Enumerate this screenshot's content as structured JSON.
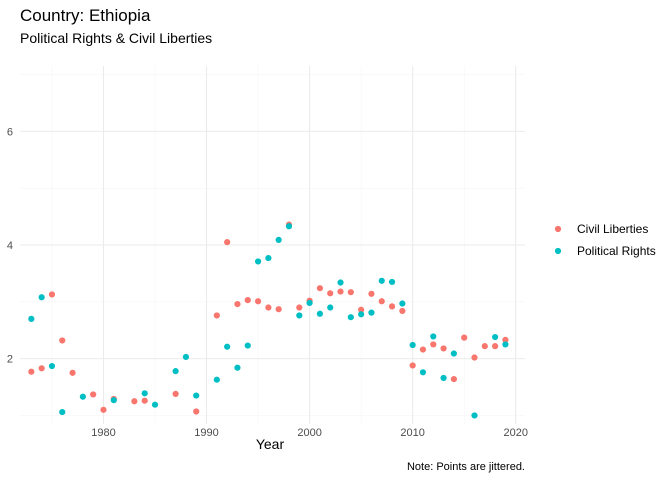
{
  "chart_data": {
    "type": "scatter",
    "title": "Country: Ethiopia",
    "subtitle": "Political Rights & Civil Liberties",
    "xlabel": "Year",
    "ylabel": "",
    "caption": "Note: Points are jittered.",
    "xlim": [
      1971.9,
      2020.9
    ],
    "ylim": [
      0.85,
      7.15
    ],
    "x_ticks": [
      1980,
      1990,
      2000,
      2010,
      2020
    ],
    "y_ticks": [
      2,
      4,
      6
    ],
    "grid": true,
    "legend_position": "right",
    "series": [
      {
        "name": "Civil Liberties",
        "color": "#F8766D",
        "points": [
          [
            1973,
            1.77
          ],
          [
            1974,
            1.83
          ],
          [
            1975,
            3.13
          ],
          [
            1976,
            2.32
          ],
          [
            1977,
            1.75
          ],
          [
            1979,
            1.37
          ],
          [
            1980,
            1.1
          ],
          [
            1981,
            1.29
          ],
          [
            1983,
            1.25
          ],
          [
            1984,
            1.26
          ],
          [
            1987,
            1.38
          ],
          [
            1989,
            1.07
          ],
          [
            1991,
            2.76
          ],
          [
            1992,
            4.05
          ],
          [
            1993,
            2.96
          ],
          [
            1994,
            3.03
          ],
          [
            1995,
            3.01
          ],
          [
            1996,
            2.9
          ],
          [
            1997,
            2.87
          ],
          [
            1998,
            4.36
          ],
          [
            1999,
            2.9
          ],
          [
            2000,
            3.02
          ],
          [
            2001,
            3.24
          ],
          [
            2002,
            3.15
          ],
          [
            2003,
            3.18
          ],
          [
            2004,
            3.17
          ],
          [
            2005,
            2.86
          ],
          [
            2006,
            3.14
          ],
          [
            2007,
            3.01
          ],
          [
            2008,
            2.92
          ],
          [
            2009,
            2.84
          ],
          [
            2010,
            1.88
          ],
          [
            2011,
            2.16
          ],
          [
            2012,
            2.25
          ],
          [
            2013,
            2.18
          ],
          [
            2014,
            1.64
          ],
          [
            2015,
            2.37
          ],
          [
            2016,
            2.02
          ],
          [
            2017,
            2.22
          ],
          [
            2018,
            2.22
          ],
          [
            2019,
            2.33
          ]
        ]
      },
      {
        "name": "Political Rights",
        "color": "#00BFC4",
        "points": [
          [
            1973,
            2.7
          ],
          [
            1974,
            3.08
          ],
          [
            1975,
            1.87
          ],
          [
            1976,
            1.06
          ],
          [
            1978,
            1.33
          ],
          [
            1981,
            1.27
          ],
          [
            1984,
            1.39
          ],
          [
            1985,
            1.19
          ],
          [
            1987,
            1.78
          ],
          [
            1988,
            2.03
          ],
          [
            1989,
            1.35
          ],
          [
            1991,
            1.63
          ],
          [
            1992,
            2.21
          ],
          [
            1993,
            1.84
          ],
          [
            1994,
            2.23
          ],
          [
            1995,
            3.71
          ],
          [
            1996,
            3.77
          ],
          [
            1997,
            4.09
          ],
          [
            1998,
            4.33
          ],
          [
            1999,
            2.76
          ],
          [
            2000,
            2.98
          ],
          [
            2001,
            2.79
          ],
          [
            2002,
            2.9
          ],
          [
            2003,
            3.34
          ],
          [
            2004,
            2.73
          ],
          [
            2005,
            2.78
          ],
          [
            2006,
            2.81
          ],
          [
            2007,
            3.37
          ],
          [
            2008,
            3.35
          ],
          [
            2009,
            2.97
          ],
          [
            2010,
            2.24
          ],
          [
            2011,
            1.76
          ],
          [
            2012,
            2.39
          ],
          [
            2013,
            1.66
          ],
          [
            2014,
            2.09
          ],
          [
            2016,
            1.0
          ],
          [
            2018,
            2.38
          ],
          [
            2019,
            2.25
          ]
        ]
      }
    ]
  }
}
